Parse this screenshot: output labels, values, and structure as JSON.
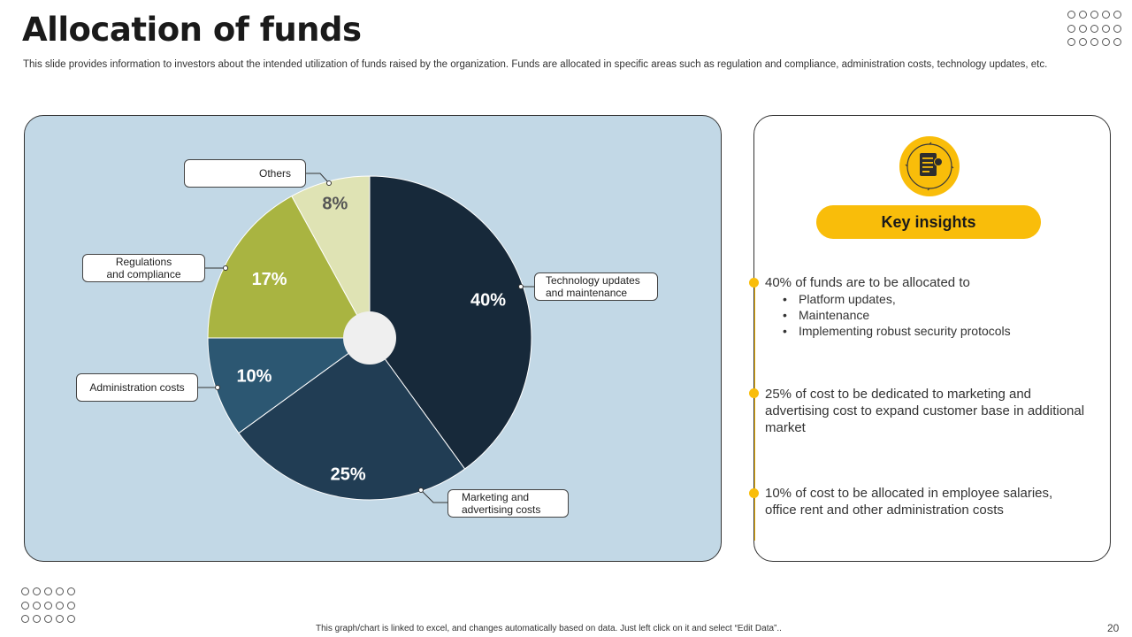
{
  "slide": {
    "title": "Allocation of funds",
    "subtitle": "This slide provides information to investors about the intended utilization of funds raised by the organization. Funds are allocated in specific areas such as regulation and compliance, administration costs, technology updates, etc.",
    "footer": "This graph/chart is linked to excel, and changes automatically based on data. Just left click on it and select “Edit Data”..",
    "page_number": "20"
  },
  "chart_data": {
    "type": "pie",
    "categories": [
      "Technology updates and maintenance",
      "Marketing and advertising costs",
      "Administration costs",
      "Regulations and compliance",
      "Others"
    ],
    "values": [
      40,
      25,
      10,
      17,
      8
    ],
    "labels": [
      "40%",
      "25%",
      "10%",
      "17%",
      "8%"
    ],
    "colors": [
      "#17293a",
      "#213d54",
      "#2c5772",
      "#a9b441",
      "#dfe3b4"
    ],
    "callouts": [
      {
        "lines": [
          "Technology updates",
          "and maintenance"
        ]
      },
      {
        "lines": [
          "Marketing and",
          "advertising costs"
        ]
      },
      {
        "lines": [
          "Administration costs"
        ]
      },
      {
        "lines": [
          "Regulations",
          "and  compliance"
        ]
      },
      {
        "lines": [
          "Others"
        ]
      }
    ]
  },
  "insights": {
    "icon": "document-icon",
    "heading": "Key insights",
    "accent_color": "#f9bd0a",
    "items": [
      {
        "text": "40% of funds  are to be allocated to",
        "bullets": [
          "Platform updates,",
          "Maintenance",
          "Implementing robust security protocols"
        ]
      },
      {
        "text": "25% of cost to be dedicated to marketing and advertising cost to expand customer base in additional market",
        "bullets": []
      },
      {
        "text": "10% of cost to be allocated in employee salaries, office rent and other administration costs",
        "bullets": []
      }
    ]
  }
}
